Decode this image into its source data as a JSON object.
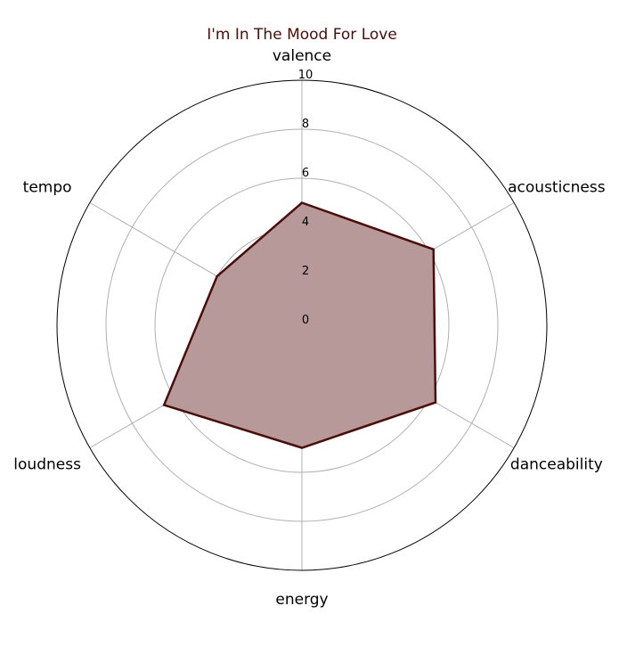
{
  "chart_data": {
    "type": "radar",
    "title": "I'm In The Mood For Love",
    "axes": [
      "valence",
      "acousticness",
      "danceability",
      "energy",
      "loudness",
      "tempo"
    ],
    "series": [
      {
        "values": [
          5.0,
          6.2,
          6.3,
          5.0,
          6.5,
          4.0
        ]
      }
    ],
    "rlim": [
      0,
      10
    ],
    "rticks": [
      0,
      2,
      4,
      6,
      8,
      10
    ],
    "grid": true,
    "colors": {
      "title": "#4a0e0a",
      "line": "#4a0e0a",
      "fill": "#b89999",
      "grid": "#b0b0b0",
      "frame": "#000000"
    }
  }
}
